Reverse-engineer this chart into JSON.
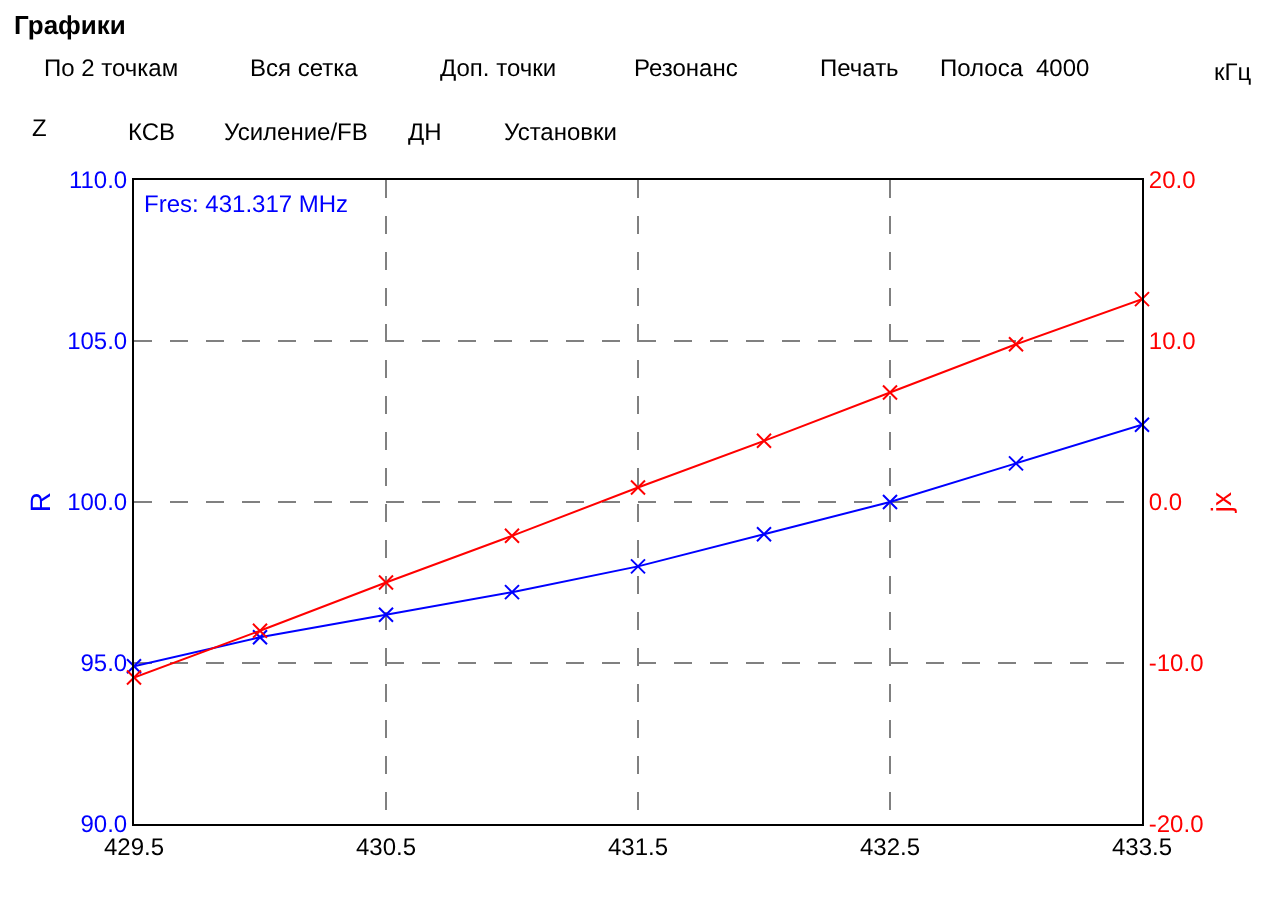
{
  "chart_data": {
    "type": "line",
    "annotations": [
      "Графики",
      "По 2 точкам",
      "Вся сетка",
      "Доп. точки",
      "Резонанс",
      "Печать",
      "Полоса",
      "4000",
      "кГц",
      "Z",
      "КСВ",
      "Усиление/FB",
      "ДН",
      "Установки",
      "Fres: 431.317 MHz"
    ],
    "x": [
      429.5,
      430.0,
      430.5,
      431.0,
      431.5,
      432.0,
      432.5,
      433.0,
      433.5
    ],
    "series": [
      {
        "color": "#0000ff",
        "values": [
          94.9,
          95.8,
          96.5,
          97.2,
          98.0,
          99.0,
          100.0,
          101.2,
          102.4
        ]
      },
      {
        "color": "#ff0000",
        "axis": "y2",
        "values": [
          -10.9,
          -8.0,
          -5.0,
          -2.1,
          0.9,
          3.8,
          6.8,
          9.8,
          12.6
        ]
      }
    ],
    "xlim": [
      429.5,
      433.5
    ],
    "xticks": [
      429.5,
      430.5,
      431.5,
      432.5,
      433.5
    ],
    "ylim": [
      90.0,
      110.0
    ],
    "yticks": [
      {
        "value": 90,
        "label": "90.0"
      },
      {
        "value": 95,
        "label": "95.0"
      },
      {
        "value": 100,
        "label": "100.0"
      },
      {
        "value": 105,
        "label": "105.0"
      },
      {
        "value": 110,
        "label": "110.0"
      }
    ],
    "y2lim": [
      -20.0,
      20.0
    ],
    "y2ticks": [
      {
        "value": -20,
        "label": "-20.0"
      },
      {
        "value": -10,
        "label": "-10.0"
      },
      {
        "value": 0,
        "label": "0.0"
      },
      {
        "value": 10,
        "label": "10.0"
      },
      {
        "value": 20,
        "label": "20.0"
      }
    ],
    "ylabel": "R",
    "y2label": "jx",
    "grid": true,
    "marker": "cross",
    "line_style": "solid"
  }
}
